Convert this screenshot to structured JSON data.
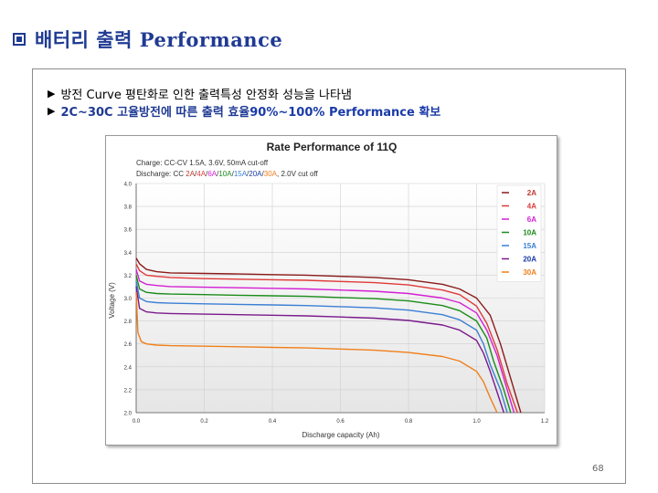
{
  "header": {
    "title": "배터리 출력 Performance"
  },
  "bullets": [
    {
      "marker": "▶",
      "text": "방전 Curve 평탄화로 인한 출력특성 안정화 성능을 나타냄"
    },
    {
      "marker": "▶",
      "text_a": "2C~30C 고율방전에 따른 출력 효율 ",
      "text_b": "90%~100% Performance 확보"
    }
  ],
  "page_number": "68",
  "chart_data": {
    "type": "line",
    "title": "Rate Performance of 11Q",
    "subtitle_charge": "Charge: CC-CV 1.5A, 3.6V, 50mA cut-off",
    "subtitle_discharge_prefix": "Discharge: CC ",
    "subtitle_discharge_rates": [
      "2A",
      "4A",
      "6A",
      "10A",
      "15A",
      "20A",
      "30A"
    ],
    "subtitle_discharge_suffix": " 2.0V cut off",
    "xlabel": "Discharge capacity (Ah)",
    "ylabel": "Voltage (V)",
    "xlim": [
      0.0,
      1.2
    ],
    "ylim": [
      2.0,
      4.0
    ],
    "x_ticks": [
      "0.0",
      "0.2",
      "0.4",
      "0.6",
      "0.8",
      "1.0",
      "1.2"
    ],
    "y_ticks": [
      "4.0",
      "3.8",
      "3.6",
      "3.4",
      "3.2",
      "3.0",
      "2.8",
      "2.6",
      "2.4",
      "2.2",
      "2.0"
    ],
    "grid": true,
    "legend_position": "top-right",
    "series": [
      {
        "name": "2A",
        "color": "#8b1a1a",
        "label_color": "#c0392b",
        "x": [
          0.0,
          0.01,
          0.03,
          0.06,
          0.1,
          0.2,
          0.3,
          0.4,
          0.5,
          0.6,
          0.7,
          0.8,
          0.9,
          0.95,
          1.0,
          1.04,
          1.07,
          1.1,
          1.13
        ],
        "y": [
          3.35,
          3.3,
          3.25,
          3.23,
          3.22,
          3.215,
          3.21,
          3.205,
          3.2,
          3.19,
          3.18,
          3.16,
          3.12,
          3.08,
          3.0,
          2.85,
          2.6,
          2.3,
          2.0
        ]
      },
      {
        "name": "4A",
        "color": "#e03a3a",
        "label_color": "#e03a3a",
        "x": [
          0.0,
          0.01,
          0.03,
          0.06,
          0.1,
          0.2,
          0.3,
          0.4,
          0.5,
          0.6,
          0.7,
          0.8,
          0.9,
          0.95,
          1.0,
          1.03,
          1.06,
          1.09,
          1.12
        ],
        "y": [
          3.3,
          3.24,
          3.2,
          3.19,
          3.18,
          3.17,
          3.165,
          3.16,
          3.155,
          3.145,
          3.135,
          3.115,
          3.07,
          3.03,
          2.93,
          2.78,
          2.55,
          2.25,
          2.0
        ]
      },
      {
        "name": "6A",
        "color": "#d41fd4",
        "label_color": "#d41fd4",
        "x": [
          0.0,
          0.01,
          0.03,
          0.06,
          0.1,
          0.2,
          0.3,
          0.4,
          0.5,
          0.6,
          0.7,
          0.8,
          0.9,
          0.95,
          1.0,
          1.03,
          1.06,
          1.09,
          1.11
        ],
        "y": [
          3.25,
          3.15,
          3.12,
          3.11,
          3.1,
          3.095,
          3.09,
          3.085,
          3.08,
          3.07,
          3.06,
          3.04,
          3.0,
          2.96,
          2.87,
          2.72,
          2.5,
          2.2,
          2.0
        ]
      },
      {
        "name": "10A",
        "color": "#1a8c1a",
        "label_color": "#1a8c1a",
        "x": [
          0.0,
          0.01,
          0.03,
          0.06,
          0.1,
          0.2,
          0.3,
          0.4,
          0.5,
          0.6,
          0.7,
          0.8,
          0.9,
          0.95,
          1.0,
          1.03,
          1.05,
          1.08,
          1.1
        ],
        "y": [
          3.2,
          3.08,
          3.05,
          3.04,
          3.035,
          3.03,
          3.025,
          3.02,
          3.015,
          3.005,
          2.995,
          2.975,
          2.935,
          2.89,
          2.8,
          2.65,
          2.45,
          2.2,
          2.0
        ]
      },
      {
        "name": "15A",
        "color": "#3a7fd4",
        "label_color": "#3a7fd4",
        "x": [
          0.0,
          0.01,
          0.03,
          0.06,
          0.1,
          0.2,
          0.3,
          0.4,
          0.5,
          0.6,
          0.7,
          0.8,
          0.9,
          0.95,
          1.0,
          1.02,
          1.04,
          1.07,
          1.09
        ],
        "y": [
          3.15,
          3.0,
          2.97,
          2.96,
          2.955,
          2.95,
          2.945,
          2.94,
          2.935,
          2.925,
          2.915,
          2.895,
          2.855,
          2.81,
          2.72,
          2.6,
          2.42,
          2.2,
          2.0
        ]
      },
      {
        "name": "20A",
        "color": "#7a1a8c",
        "label_color": "#1a3ba8",
        "x": [
          0.0,
          0.01,
          0.03,
          0.06,
          0.1,
          0.2,
          0.3,
          0.4,
          0.5,
          0.6,
          0.7,
          0.8,
          0.9,
          0.95,
          1.0,
          1.02,
          1.04,
          1.06,
          1.08
        ],
        "y": [
          3.1,
          2.91,
          2.88,
          2.87,
          2.865,
          2.86,
          2.855,
          2.85,
          2.845,
          2.835,
          2.825,
          2.805,
          2.765,
          2.72,
          2.63,
          2.52,
          2.36,
          2.18,
          2.0
        ]
      },
      {
        "name": "30A",
        "color": "#f07f1a",
        "label_color": "#f07f1a",
        "x": [
          0.0,
          0.005,
          0.015,
          0.03,
          0.06,
          0.1,
          0.2,
          0.3,
          0.4,
          0.5,
          0.6,
          0.7,
          0.8,
          0.9,
          0.95,
          1.0,
          1.02,
          1.04,
          1.06
        ],
        "y": [
          3.05,
          2.7,
          2.62,
          2.6,
          2.59,
          2.585,
          2.58,
          2.575,
          2.57,
          2.565,
          2.555,
          2.545,
          2.525,
          2.49,
          2.45,
          2.36,
          2.27,
          2.13,
          2.0
        ]
      }
    ]
  }
}
